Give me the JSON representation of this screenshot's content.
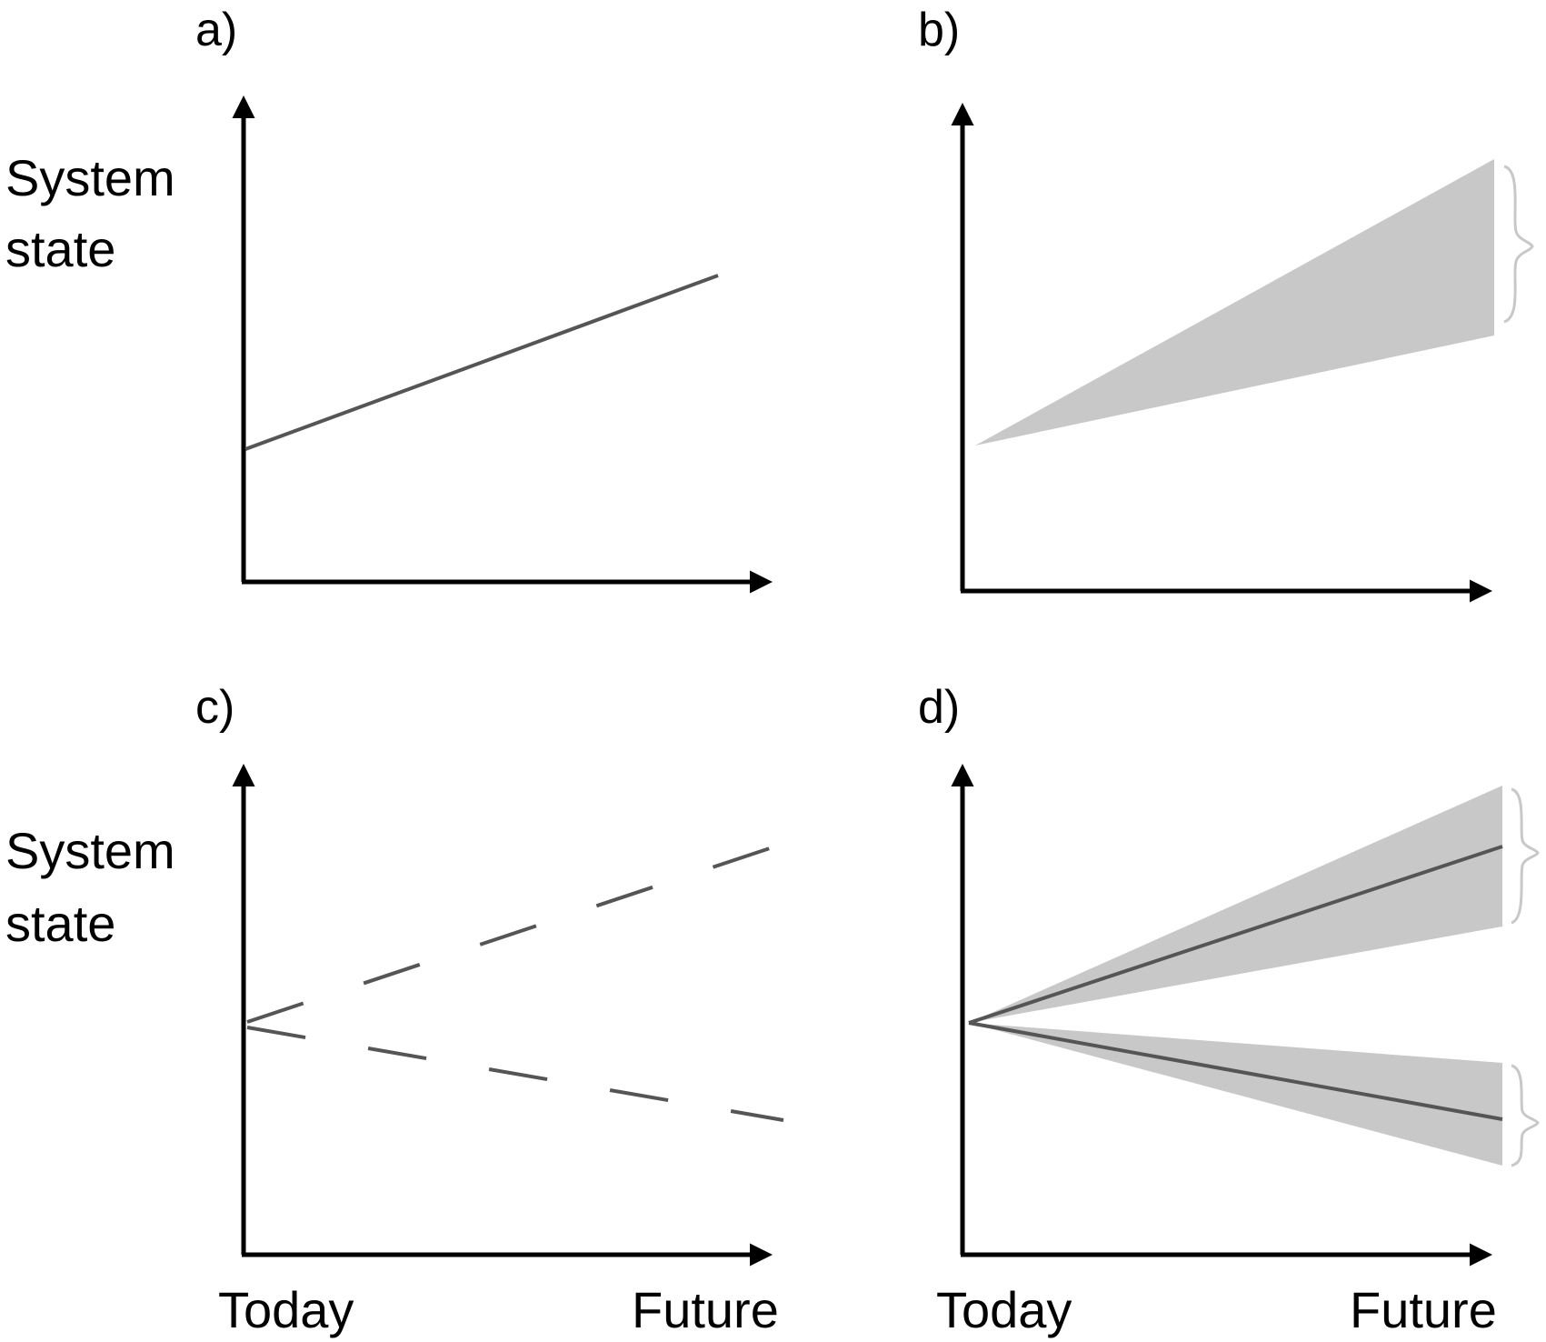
{
  "colors": {
    "axis": "#000000",
    "line": "#555555",
    "band": "#c8c8c8",
    "brace": "#c8c8c8"
  },
  "panels": {
    "a": {
      "label": "a)"
    },
    "b": {
      "label": "b)"
    },
    "c": {
      "label": "c)"
    },
    "d": {
      "label": "d)"
    }
  },
  "axes": {
    "y_label_line1": "System",
    "y_label_line2": "state",
    "x_start": "Today",
    "x_end": "Future"
  }
}
